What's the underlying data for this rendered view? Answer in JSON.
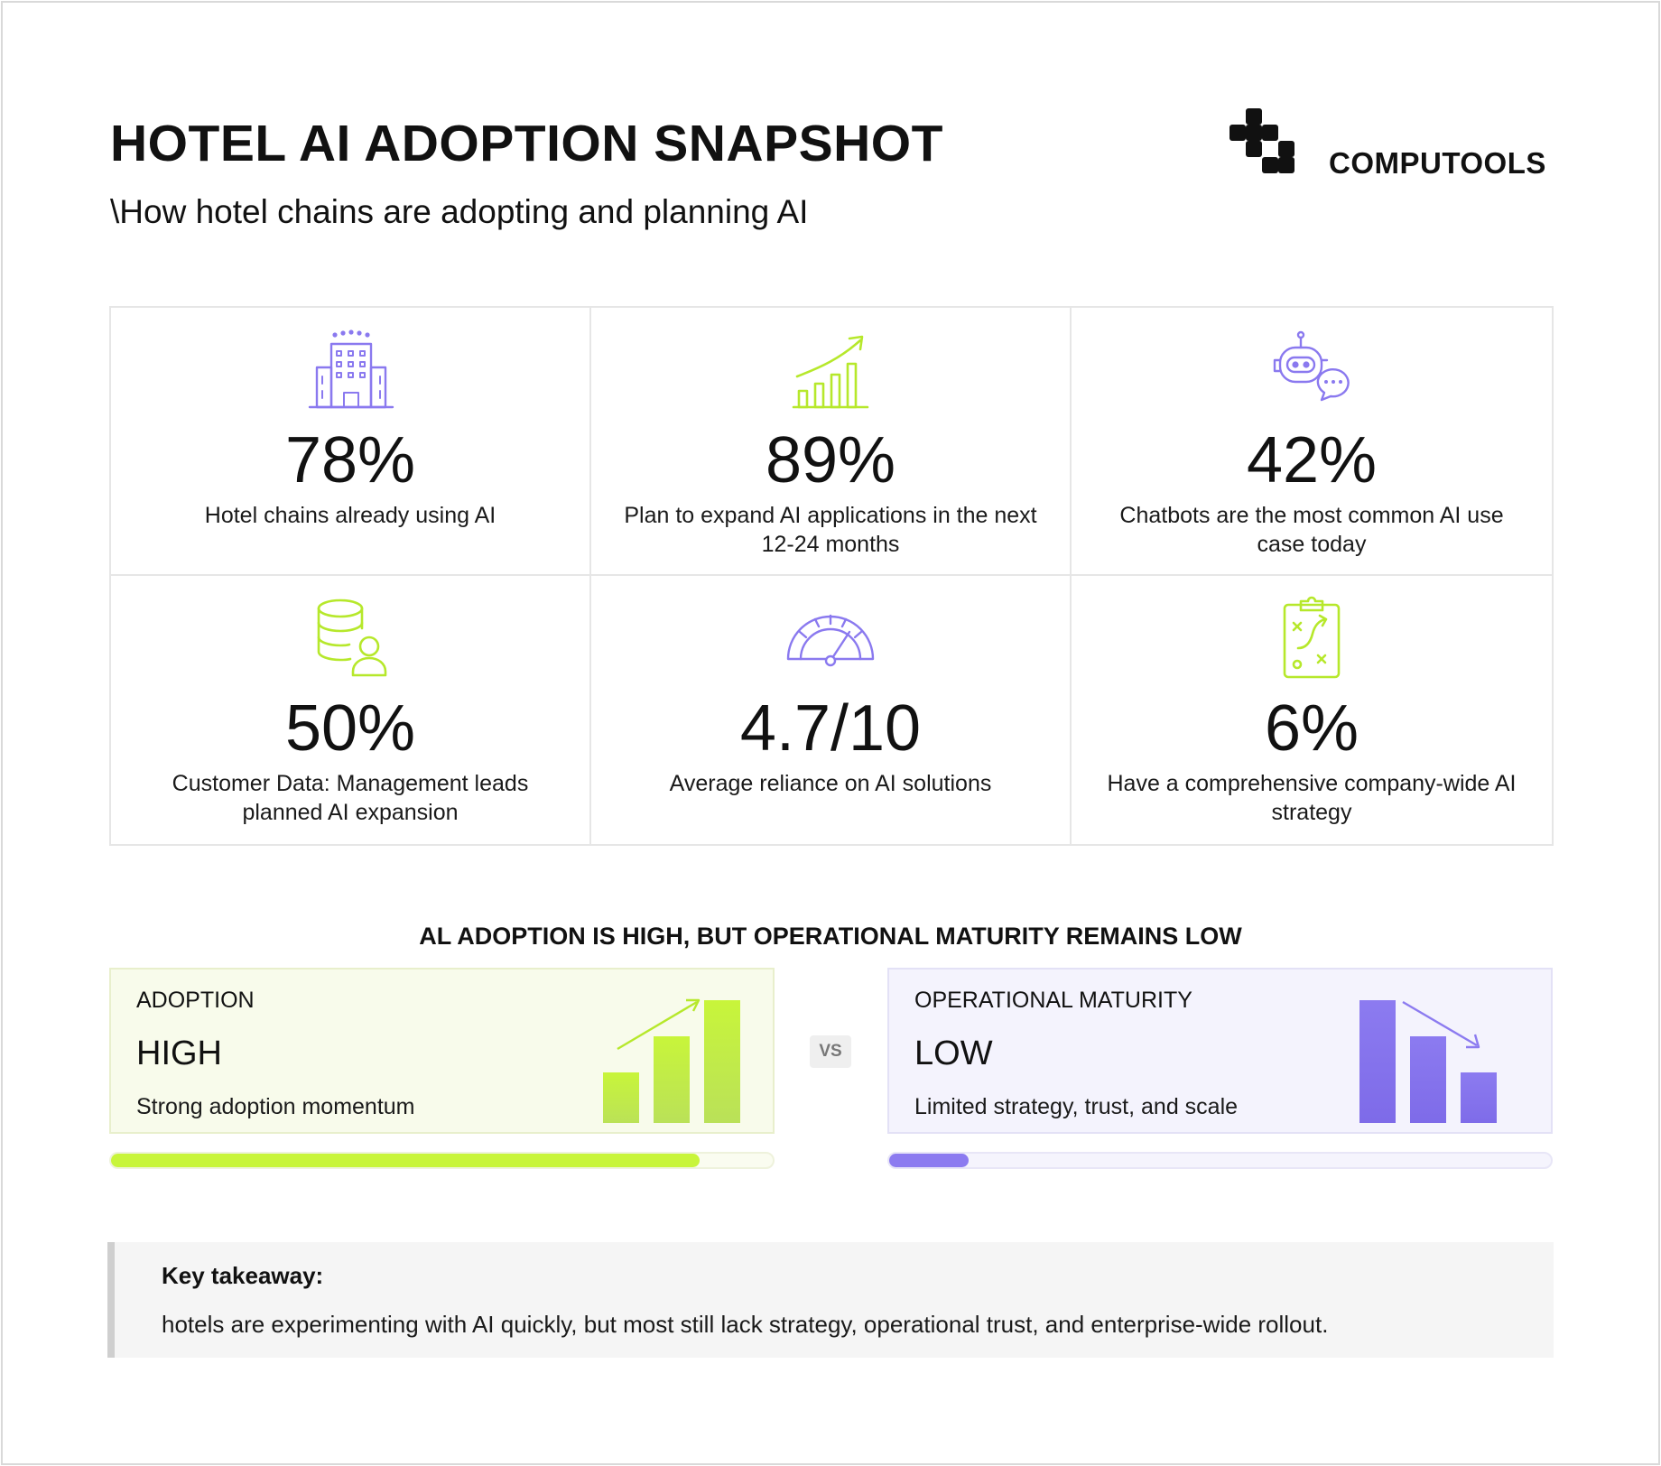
{
  "header": {
    "title": "HOTEL AI ADOPTION SNAPSHOT",
    "subtitle": "\\How hotel chains are adopting and planning AI"
  },
  "brand": {
    "name": "COMPUTOOLS",
    "logo_icon": "computools-logo-icon"
  },
  "stats": [
    {
      "value": "78%",
      "label": "Hotel chains already using AI",
      "icon": "hotel-building-icon",
      "color": "#8a79ef"
    },
    {
      "value": "89%",
      "label": "Plan to expand AI applications in the next 12-24 months",
      "icon": "growth-chart-icon",
      "color": "#b6e82b"
    },
    {
      "value": "42%",
      "label": "Chatbots are the most common AI use case today",
      "icon": "chatbot-icon",
      "color": "#8a79ef"
    },
    {
      "value": "50%",
      "label": "Customer Data: Management leads planned AI expansion",
      "icon": "database-user-icon",
      "color": "#b6e82b"
    },
    {
      "value": "4.7/10",
      "label": "Average reliance on AI solutions",
      "icon": "gauge-icon",
      "color": "#8a79ef"
    },
    {
      "value": "6%",
      "label": "Have a comprehensive company-wide AI strategy",
      "icon": "strategy-clipboard-icon",
      "color": "#b6e82b"
    }
  ],
  "comparison": {
    "title": "AL ADOPTION IS HIGH, BUT OPERATIONAL MATURITY REMAINS LOW",
    "vs_label": "VS",
    "adoption": {
      "label": "ADOPTION",
      "level": "HIGH",
      "description": "Strong adoption momentum",
      "progress": 0.89,
      "color": "#c8f53a",
      "icon": "rising-bars-icon"
    },
    "maturity": {
      "label": "OPERATIONAL MATURITY",
      "level": "LOW",
      "description": "Limited strategy, trust, and scale",
      "progress": 0.12,
      "color": "#8c7bf0",
      "icon": "falling-bars-icon"
    }
  },
  "takeaway": {
    "title": "Key takeaway:",
    "text": "hotels are experimenting with AI quickly, but most still lack strategy, operational trust, and enterprise-wide rollout."
  }
}
